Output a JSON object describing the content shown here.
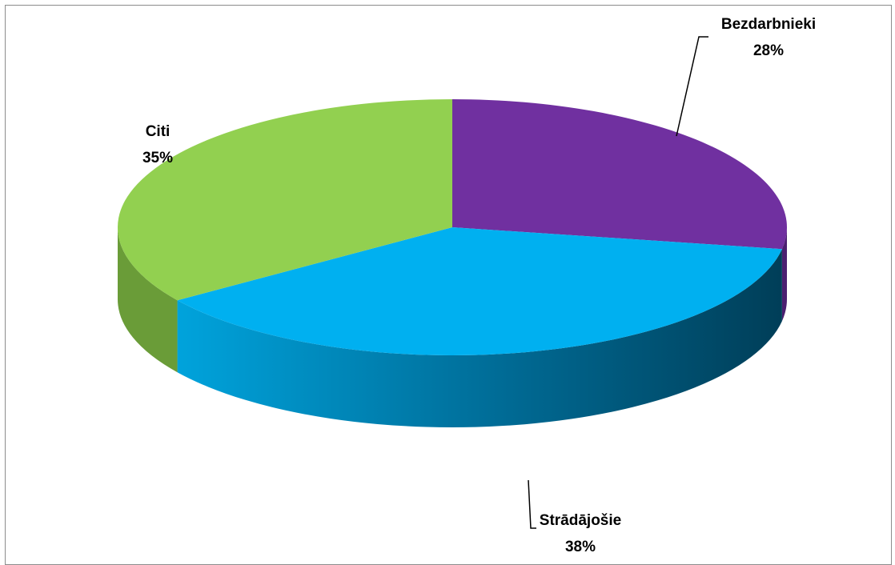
{
  "chart_data": {
    "type": "pie",
    "style": "3d",
    "title": "",
    "slices": [
      {
        "label": "Bezdarbnieki",
        "value": 28,
        "value_label": "28%",
        "color": "#7030a0",
        "side_color": "#4b1f70"
      },
      {
        "label": "Strādājošie",
        "value": 38,
        "value_label": "38%",
        "color": "#00b0f0",
        "side_color": "#0079a6"
      },
      {
        "label": "Citi",
        "value": 35,
        "value_label": "35%",
        "color": "#92d050",
        "side_color": "#6a9c38"
      }
    ],
    "legend": "none",
    "data_labels": "outside-with-leader-lines"
  }
}
